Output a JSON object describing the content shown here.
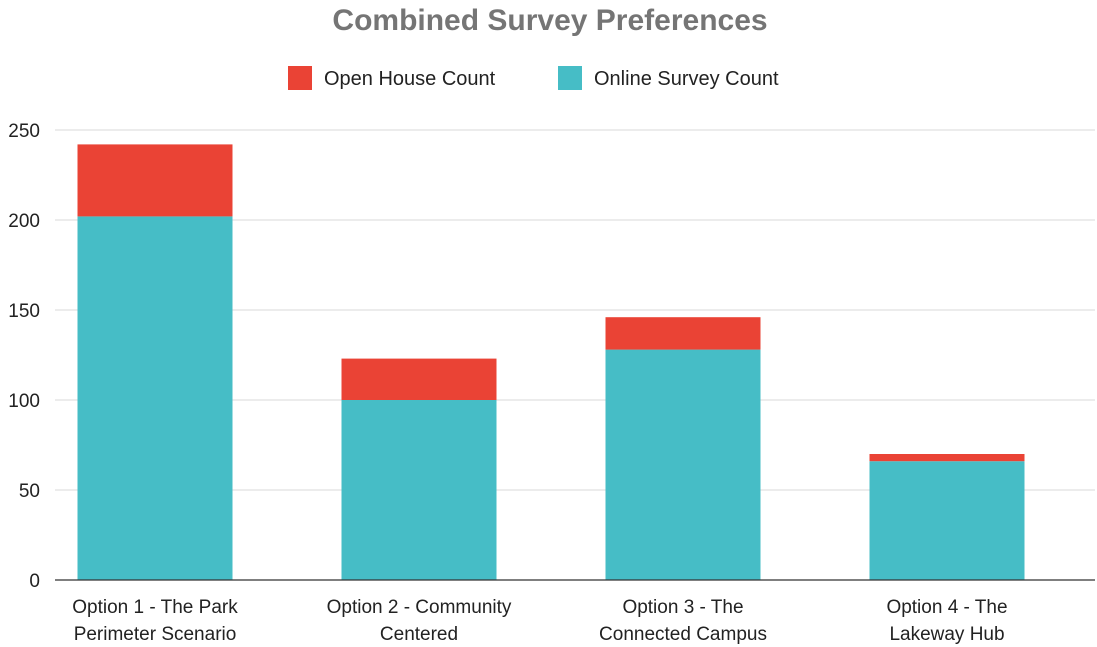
{
  "chart_data": {
    "type": "bar",
    "stacked": true,
    "title": "Combined Survey Preferences",
    "xlabel": "",
    "ylabel": "",
    "ylim": [
      0,
      250
    ],
    "yticks": [
      0,
      50,
      100,
      150,
      200,
      250
    ],
    "grid": true,
    "legend_position": "top",
    "categories": [
      [
        "Option 1 - The Park",
        "Perimeter Scenario"
      ],
      [
        "Option 2 - Community",
        "Centered"
      ],
      [
        "Option 3 - The",
        "Connected Campus"
      ],
      [
        "Option 4 - The",
        "Lakeway Hub"
      ]
    ],
    "series": [
      {
        "name": "Online Survey Count",
        "color": "#46bdc6",
        "values": [
          202,
          100,
          128,
          66
        ]
      },
      {
        "name": "Open House Count",
        "color": "#ea4335",
        "values": [
          40,
          23,
          18,
          4
        ]
      }
    ],
    "legend_order": [
      "Open House Count",
      "Online Survey Count"
    ]
  }
}
